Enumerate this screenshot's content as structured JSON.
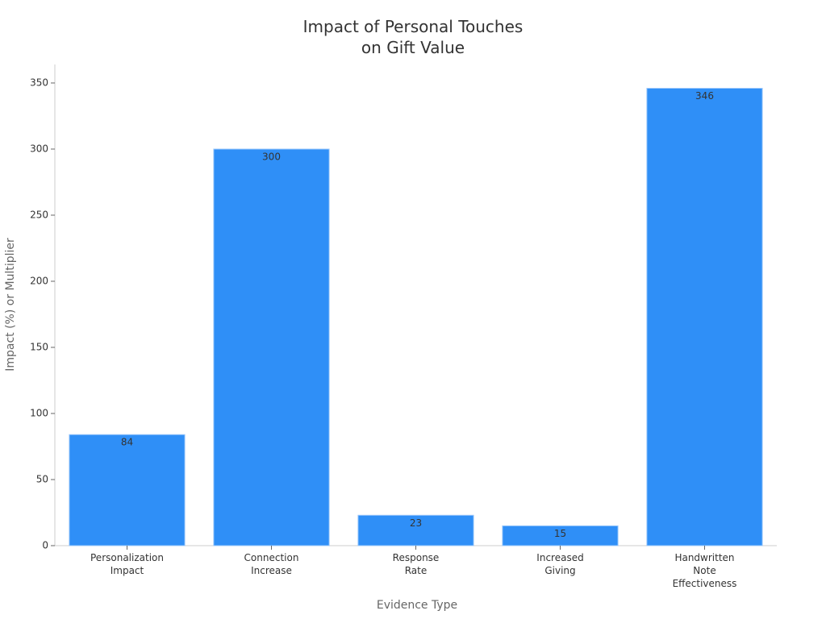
{
  "chart_data": {
    "type": "bar",
    "title": "Impact of Personal Touches\non Gift Value",
    "x_label": "Evidence Type",
    "y_label": "Impact (%) or Multiplier",
    "categories": [
      "Personalization\nImpact",
      "Connection\nIncrease",
      "Response\nRate",
      "Increased\nGiving",
      "Handwritten\nNote\nEffectiveness"
    ],
    "values": [
      84,
      300,
      23,
      15,
      346
    ],
    "color": "#2f8ff7",
    "ylim": [
      0,
      364
    ],
    "yticks": [
      0,
      50,
      100,
      150,
      200,
      250,
      300,
      350
    ],
    "grid": false
  }
}
